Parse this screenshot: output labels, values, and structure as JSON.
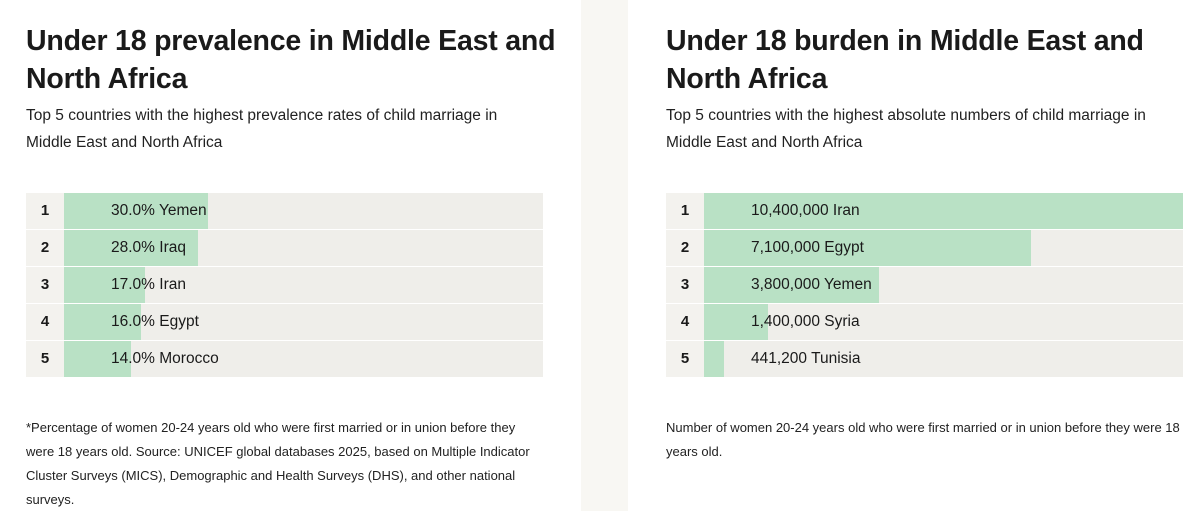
{
  "chart_data": [
    {
      "type": "ranked-bar",
      "title": "Under 18 prevalence in Middle East and North Africa",
      "subtitle": "Top 5 countries with the highest prevalence rates of child marriage in Middle East and North Africa",
      "ranks": [
        1,
        2,
        3,
        4,
        5
      ],
      "categories": [
        "Yemen",
        "Iraq",
        "Iran",
        "Egypt",
        "Morocco"
      ],
      "values": [
        30,
        28,
        17,
        16,
        14
      ],
      "value_labels": [
        "30.0%",
        "28.0%",
        "17.0%",
        "16.0%",
        "14.0%"
      ],
      "xlim": [
        0,
        100
      ],
      "color": "#b9e1c5",
      "note": "*Percentage of women 20-24 years old who were first married or in union before they were 18 years old. Source: UNICEF global databases 2025, based on Multiple Indicator Cluster Surveys (MICS), Demographic and Health Surveys (DHS), and other national surveys."
    },
    {
      "type": "ranked-bar",
      "title": "Under 18 burden in Middle East and North Africa",
      "subtitle": "Top 5 countries with the highest absolute numbers of child marriage in Middle East and North Africa",
      "ranks": [
        1,
        2,
        3,
        4,
        5
      ],
      "categories": [
        "Iran",
        "Egypt",
        "Yemen",
        "Syria",
        "Tunisia"
      ],
      "values": [
        10400000,
        7100000,
        3800000,
        1400000,
        441200
      ],
      "value_labels": [
        "10,400,000",
        "7,100,000",
        "3,800,000",
        "1,400,000",
        "441,200"
      ],
      "xlim": [
        0,
        10400000
      ],
      "color": "#b9e1c5",
      "note": "Number of women 20-24 years old who were first married or in union before they were 18 years old."
    }
  ]
}
